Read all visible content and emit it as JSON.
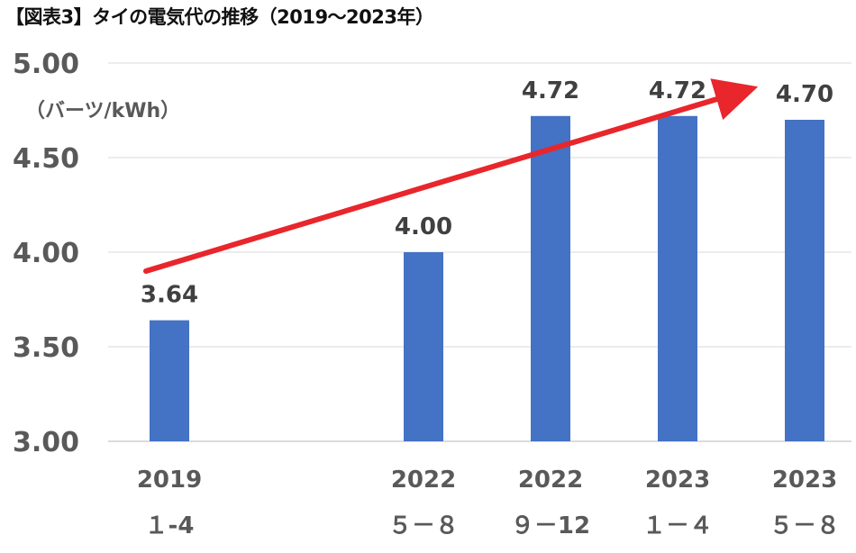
{
  "title": "【図表3】タイの電気代の推移（2019～2023年）",
  "chart_data": {
    "type": "bar",
    "title": "【図表3】タイの電気代の推移（2019～2023年）",
    "ylabel": "（バーツ/kWh）",
    "xlabel": "",
    "ylim": [
      3.0,
      5.0
    ],
    "yticks": [
      "3.00",
      "3.50",
      "4.00",
      "4.50",
      "5.00"
    ],
    "categories": [
      {
        "year": "2019",
        "months": "１-4"
      },
      {
        "year": "2022",
        "months": "５－８"
      },
      {
        "year": "2022",
        "months": "９－12"
      },
      {
        "year": "2023",
        "months": "１－４"
      },
      {
        "year": "2023",
        "months": "５－８"
      }
    ],
    "values": [
      3.64,
      4.0,
      4.72,
      4.72,
      4.7
    ],
    "value_labels": [
      "3.64",
      "4.00",
      "4.72",
      "4.72",
      "4.70"
    ],
    "grid": true,
    "bar_color": "#4472C4",
    "trend_arrow": {
      "color": "#E8262B",
      "from_value": 3.9,
      "to_value": 4.85
    }
  }
}
